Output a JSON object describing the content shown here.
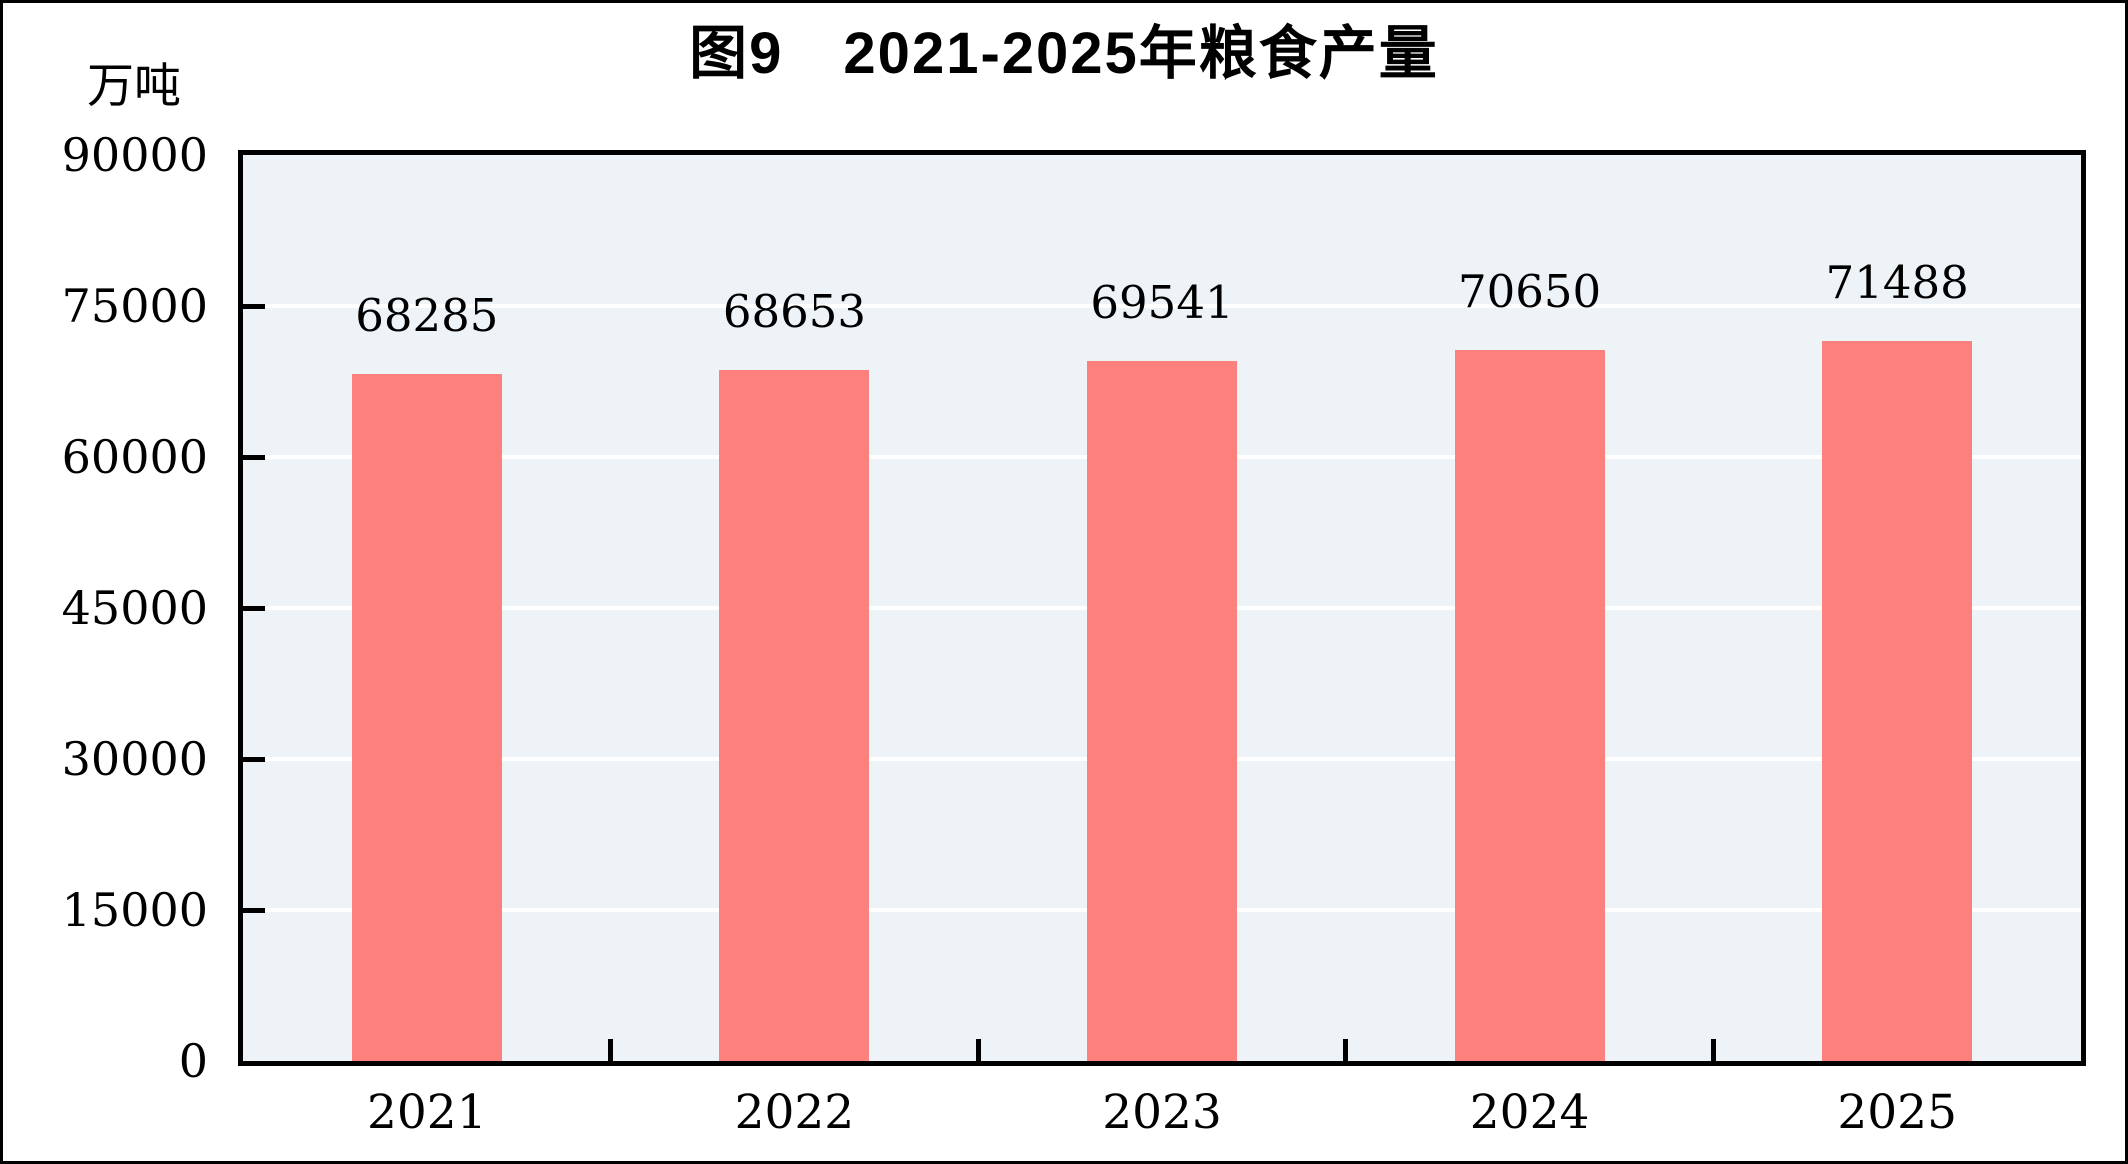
{
  "page": {
    "title": "图9　2021-2025年粮食产量"
  },
  "chart_data": {
    "type": "bar",
    "title": "图9　2021-2025年粮食产量",
    "figure_number": "图9",
    "subtitle": "2021-2025年粮食产量",
    "unit_label": "万吨",
    "xlabel": "",
    "ylabel": "万吨",
    "categories": [
      "2021",
      "2022",
      "2023",
      "2024",
      "2025"
    ],
    "values": [
      68285,
      68653,
      69541,
      70650,
      71488
    ],
    "data_labels": [
      "68285",
      "68653",
      "69541",
      "70650",
      "71488"
    ],
    "ylim": [
      0,
      90000
    ],
    "ytick_interval": 15000,
    "yticks": [
      0,
      15000,
      30000,
      45000,
      60000,
      75000,
      90000
    ],
    "grid": "horizontal-white-gridlines",
    "legend": "none",
    "colors": {
      "bar": "#FC817C",
      "plot_background": "#EDF3F7",
      "gridline": "#FFFFFF",
      "axis": "#000000",
      "text": "#000000",
      "frame": "#000000"
    }
  }
}
